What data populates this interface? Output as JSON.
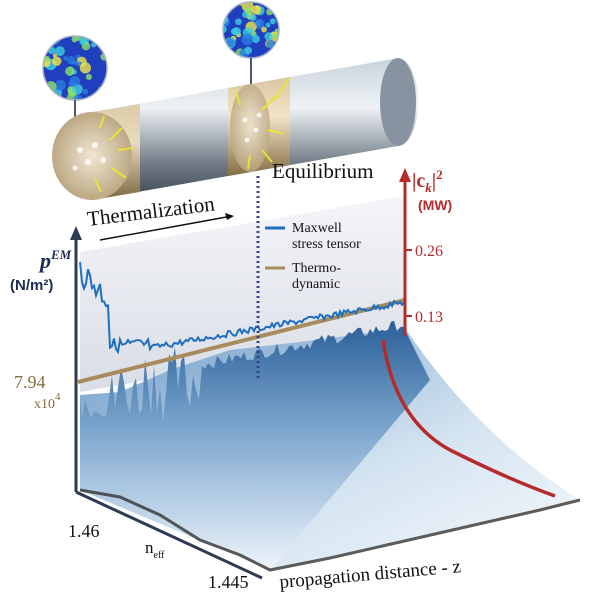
{
  "labels": {
    "thermalization": "Thermalization",
    "equilibrium": "Equilibrium"
  },
  "right_axis": {
    "title": "|c",
    "title_sub": "k",
    "title_rest": "|",
    "title_sup": "2",
    "unit": "(MW)",
    "ticks": [
      "0.26",
      "0.13"
    ]
  },
  "left_axis": {
    "title": "p",
    "title_sup": "EM",
    "unit": "(N/m²)",
    "value": "7.94",
    "multiplier": "x10",
    "multiplier_sup": "4"
  },
  "legend": {
    "items": [
      {
        "lines": [
          "Maxwell",
          "stress tensor"
        ]
      },
      {
        "lines": [
          "Thermo-",
          "dynamic"
        ]
      }
    ]
  },
  "depth_axis": {
    "ticks": [
      "1.46",
      "1.445"
    ],
    "title": "n",
    "title_sub": "eff"
  },
  "x_axis": {
    "title": "propagation distance - z"
  }
}
